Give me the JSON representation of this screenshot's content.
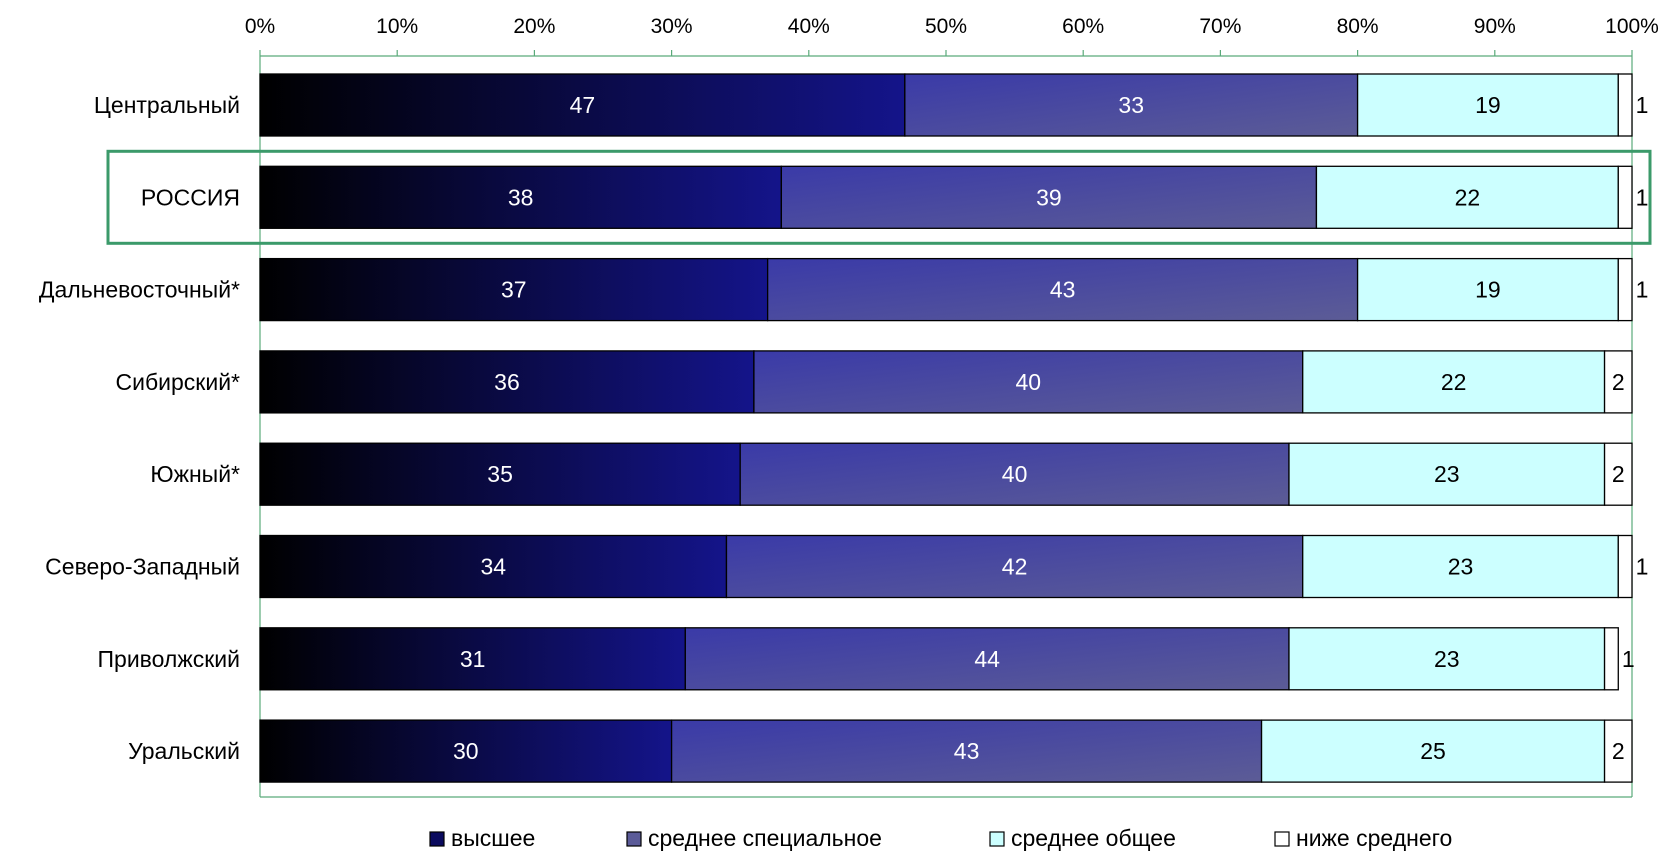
{
  "chart_data": {
    "type": "bar",
    "orientation": "horizontal",
    "stacked": "percent",
    "categories": [
      "Центральный",
      "РОССИЯ",
      "Дальневосточный*",
      "Сибирский*",
      "Южный*",
      "Северо-Западный",
      "Приволжский",
      "Уральский"
    ],
    "highlighted_category": "РОССИЯ",
    "series": [
      {
        "name": "высшее",
        "values": [
          47,
          38,
          37,
          36,
          35,
          34,
          31,
          30
        ]
      },
      {
        "name": "среднее специальное",
        "values": [
          33,
          39,
          43,
          40,
          40,
          42,
          44,
          43
        ]
      },
      {
        "name": "среднее общее",
        "values": [
          19,
          22,
          19,
          22,
          23,
          23,
          23,
          25
        ]
      },
      {
        "name": "ниже среднего",
        "values": [
          1,
          1,
          1,
          2,
          2,
          1,
          1,
          2
        ]
      }
    ],
    "x_ticks": [
      "0%",
      "10%",
      "20%",
      "30%",
      "40%",
      "50%",
      "60%",
      "70%",
      "80%",
      "90%",
      "100%"
    ],
    "xlim": [
      0,
      100
    ],
    "axis_position": "top",
    "legend_position": "bottom",
    "grid": false,
    "colors": {
      "высшее": "#0a0a5e",
      "среднее специальное": "#5b5b98",
      "среднее общее": "#ccffff",
      "ниже среднего": "#ffffff",
      "highlight_box": "#3b9a6a",
      "axis": "#5aaa7a"
    }
  }
}
